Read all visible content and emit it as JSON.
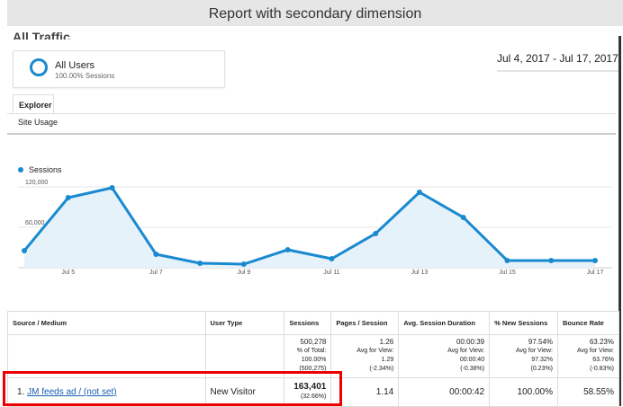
{
  "title": "Report with secondary dimension",
  "page_title": "All Traffic",
  "segment": {
    "name": "All Users",
    "sub": "100.00% Sessions"
  },
  "date_range": "Jul 4, 2017 - Jul 17, 2017",
  "tabs": {
    "explorer": "Explorer",
    "site_usage": "Site Usage"
  },
  "chart_data": {
    "type": "area",
    "series": [
      {
        "name": "Sessions",
        "color": "#1a8ad0",
        "values": [
          25300,
          104000,
          118700,
          20000,
          6700,
          5300,
          26700,
          13300,
          50700,
          112000,
          74700,
          10700,
          10700,
          10700
        ]
      }
    ],
    "x": [
      "Jul 4",
      "Jul 5",
      "Jul 6",
      "Jul 7",
      "Jul 8",
      "Jul 9",
      "Jul 10",
      "Jul 11",
      "Jul 12",
      "Jul 13",
      "Jul 14",
      "Jul 15",
      "Jul 16",
      "Jul 17"
    ],
    "x_tick_labels": [
      "Jul 5",
      "Jul 7",
      "Jul 9",
      "Jul 11",
      "Jul 13",
      "Jul 15",
      "Jul 17"
    ],
    "y_tick_labels": [
      "120,000",
      "60,000"
    ],
    "ylim": [
      0,
      120000
    ],
    "legend": "top-left"
  },
  "table": {
    "headers": [
      "Source / Medium",
      "User Type",
      "Sessions",
      "Pages / Session",
      "Avg. Session Duration",
      "% New Sessions",
      "Bounce Rate"
    ],
    "totals": [
      [
        "500,278",
        "% of Total:",
        "100.00%",
        "(500,275)"
      ],
      [
        "1.26",
        "Avg for View:",
        "1.29",
        "(-2.34%)"
      ],
      [
        "00:00:39",
        "Avg for View:",
        "00:00:40",
        "(-0.38%)"
      ],
      [
        "97.54%",
        "Avg for View:",
        "97.32%",
        "(0.23%)"
      ],
      [
        "63.23%",
        "Avg for View:",
        "63.76%",
        "(-0.83%)"
      ]
    ],
    "rows": [
      {
        "index": "1.",
        "source": "JM feeds ad / (not set)",
        "user_type": "New Visitor",
        "sessions": "163,401",
        "sessions_pct": "(32.66%)",
        "pages": "1.14",
        "duration": "00:00:42",
        "new": "100.00%",
        "bounce": "58.55%"
      }
    ]
  },
  "highlight_color": "#ee0000"
}
